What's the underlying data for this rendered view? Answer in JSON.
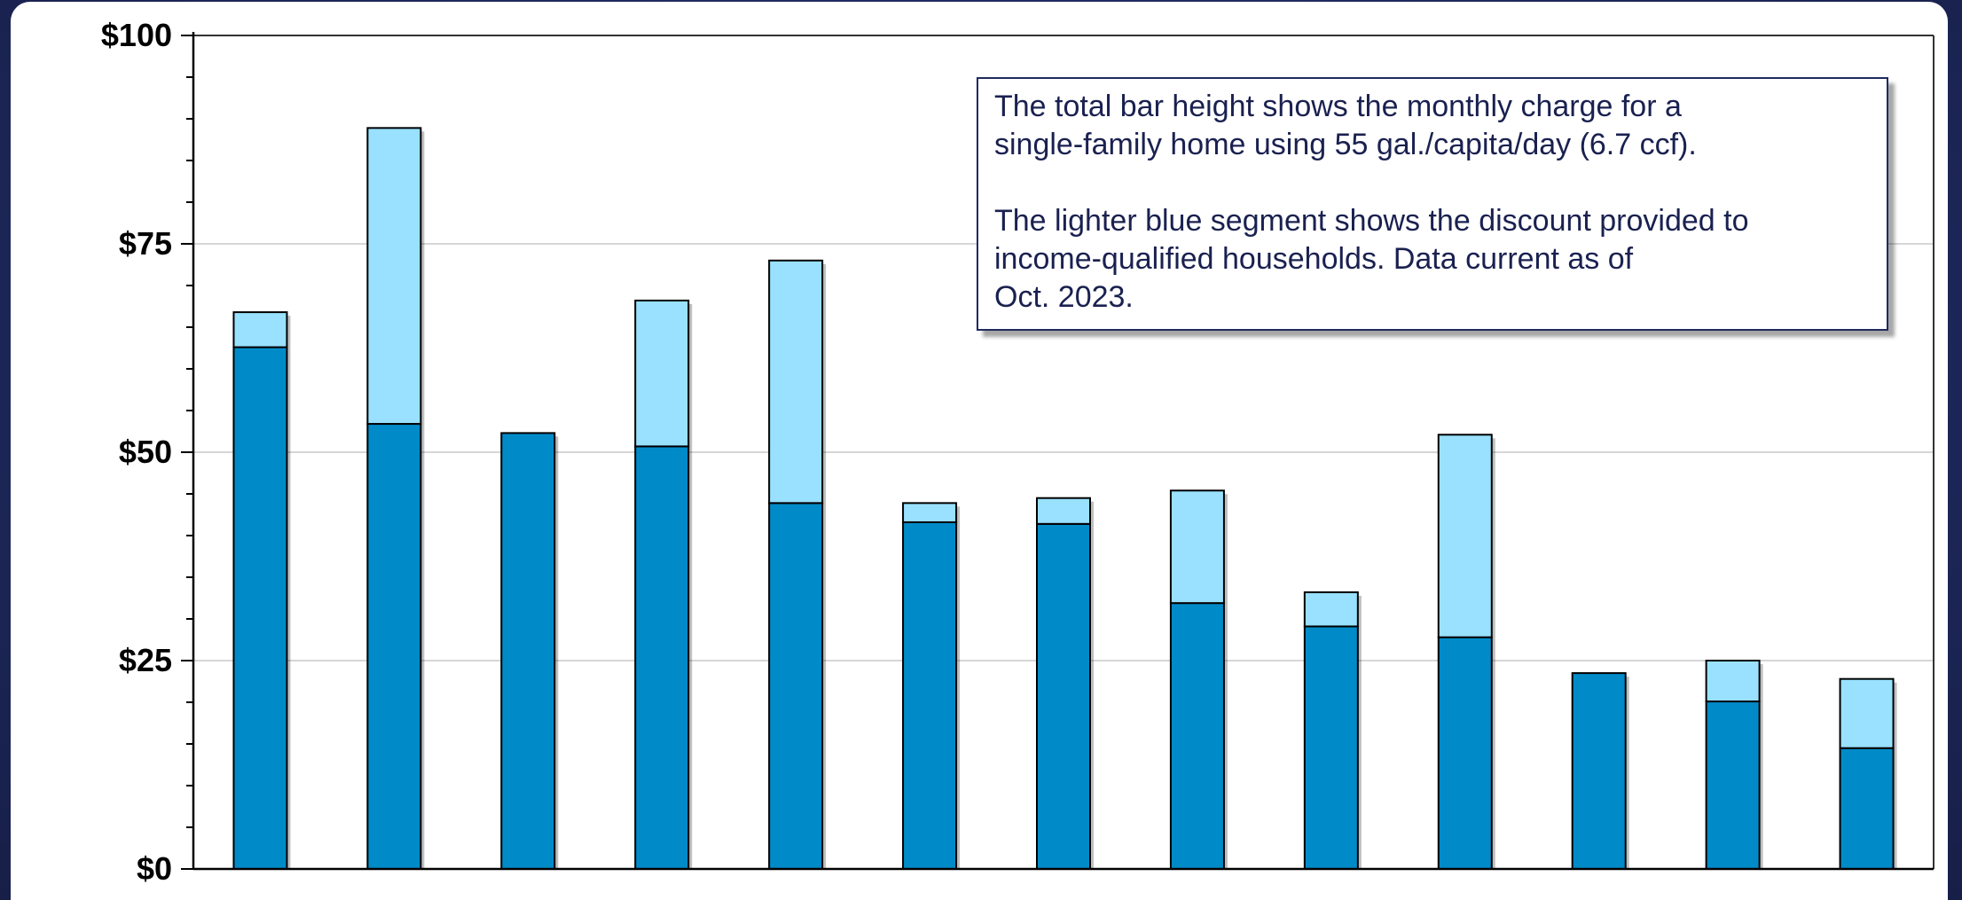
{
  "colors": {
    "page_background": "#1f2a5e",
    "plot_background": "#ffffff",
    "base_segment": "#008bc8",
    "discount_segment": "#99e1ff",
    "outline": "#000000",
    "gridline": "#c8c8c8"
  },
  "note": {
    "paragraph_1": "The total bar height shows the monthly charge for a\nsingle-family home using 55 gal./capita/day (6.7 ccf).",
    "paragraph_2": "The lighter blue segment shows the discount provided to\nincome-qualified households. Data current as of\nOct. 2023."
  },
  "chart_data": {
    "type": "bar",
    "stacked": true,
    "title": "",
    "xlabel": "",
    "ylabel": "",
    "ylim": [
      0,
      100
    ],
    "y_ticks": [
      0,
      25,
      50,
      75,
      100
    ],
    "y_tick_labels": [
      "$0",
      "$25",
      "$50",
      "$75",
      "$100"
    ],
    "y_minor_step": 5,
    "grid": "horizontal at major ticks",
    "categories": [
      "",
      "",
      "",
      "",
      "",
      "",
      "",
      "",
      "",
      "",
      "",
      "",
      ""
    ],
    "series": [
      {
        "role": "base",
        "values": [
          62.6,
          53.4,
          52.3,
          50.7,
          43.9,
          41.6,
          41.4,
          31.9,
          29.1,
          27.8,
          23.5,
          20.1,
          14.5
        ]
      },
      {
        "role": "discount",
        "values": [
          4.2,
          35.5,
          0,
          17.5,
          29.1,
          2.3,
          3.1,
          13.5,
          4.1,
          24.3,
          0,
          4.9,
          8.3
        ]
      }
    ]
  }
}
